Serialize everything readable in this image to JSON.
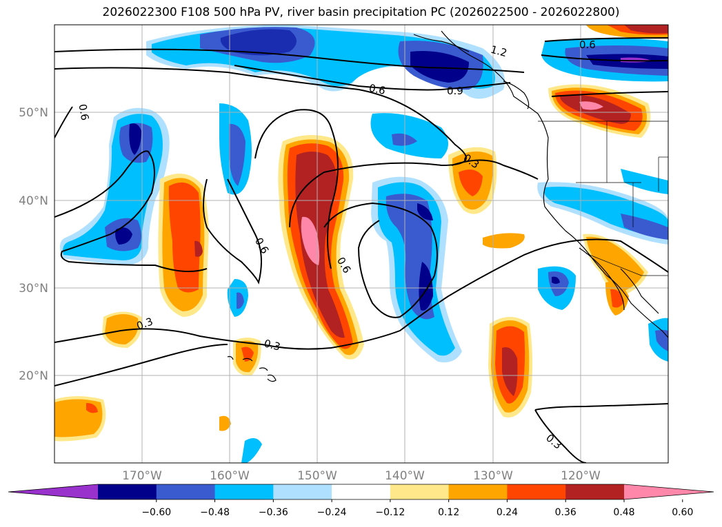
{
  "title": "2026022300 F108 500 hPa PV, river basin precipitation PC (2026022500 - 2026022800)",
  "map": {
    "projection": "PlateCarree",
    "lon_range": [
      -180,
      -110
    ],
    "lat_range": [
      10,
      60
    ],
    "gridlines": true,
    "coastlines": true,
    "borders": true
  },
  "axes": {
    "lat_ticks": [
      "20°N",
      "30°N",
      "40°N",
      "50°N"
    ],
    "lon_ticks": [
      "170°W",
      "160°W",
      "150°W",
      "140°W",
      "130°W",
      "120°W"
    ]
  },
  "contour_labels": [
    "0.6",
    "1.2",
    "0.6",
    "0.9",
    "0.6",
    "0.3",
    "0.6",
    "0.6",
    "0.3",
    "0.3",
    "0.3",
    "0.6"
  ],
  "colorbar": {
    "extend": "both",
    "colors": [
      "#9932cc",
      "#00008b",
      "#3a5bd0",
      "#00bfff",
      "#b0e0ff",
      "#ffffff",
      "#ffe88a",
      "#ffa500",
      "#ff4500",
      "#b22222",
      "#ff88aa"
    ],
    "tick_labels": [
      "−0.60",
      "−0.48",
      "−0.36",
      "−0.24",
      "−0.12",
      "0.12",
      "0.24",
      "0.36",
      "0.48",
      "0.60"
    ]
  }
}
